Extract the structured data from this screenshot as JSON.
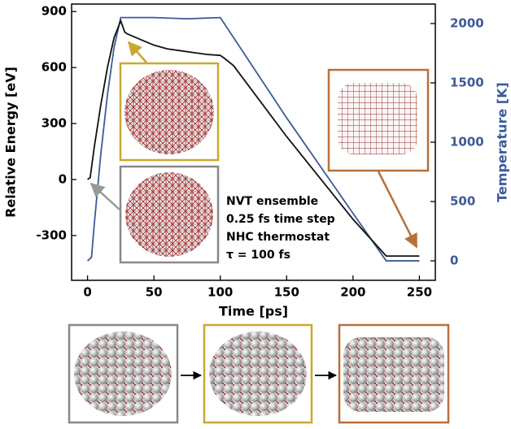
{
  "chart_data": {
    "type": "line",
    "xlabel": "Time [ps]",
    "ylabel": "Relative Energy [eV]",
    "y2label": "Temperature [K]",
    "xlim": [
      -12,
      262
    ],
    "xticks": [
      0,
      50,
      100,
      150,
      200,
      250
    ],
    "ylim": [
      -540,
      940
    ],
    "yticks": [
      -300,
      0,
      300,
      600,
      900
    ],
    "y2lim": [
      -164,
      2164
    ],
    "y2ticks": [
      0,
      500,
      1000,
      1500,
      2000
    ],
    "y2color": "#3d5a99",
    "annotations": [
      "NVT ensemble",
      "0.25 fs time step",
      "NHC thermostat",
      "τ = 100 fs"
    ],
    "series": [
      {
        "color": "#3d5a99",
        "axis": "y2",
        "x": [
          0,
          3,
          5,
          10,
          15,
          20,
          25,
          50,
          75,
          100,
          103,
          150,
          200,
          225,
          250
        ],
        "values": [
          0,
          30,
          300,
          900,
          1400,
          1800,
          2050,
          2050,
          2040,
          2050,
          2000,
          1205,
          400,
          0,
          0
        ]
      },
      {
        "color": "#111111",
        "axis": "y",
        "x": [
          0,
          2,
          5,
          10,
          15,
          20,
          25,
          28,
          30,
          40,
          50,
          60,
          70,
          80,
          90,
          100,
          103,
          110,
          150,
          200,
          225,
          250
        ],
        "values": [
          0,
          10,
          170,
          400,
          600,
          760,
          850,
          790,
          780,
          750,
          720,
          700,
          690,
          680,
          670,
          665,
          650,
          610,
          230,
          -213,
          -410,
          -410
        ]
      }
    ]
  }
}
